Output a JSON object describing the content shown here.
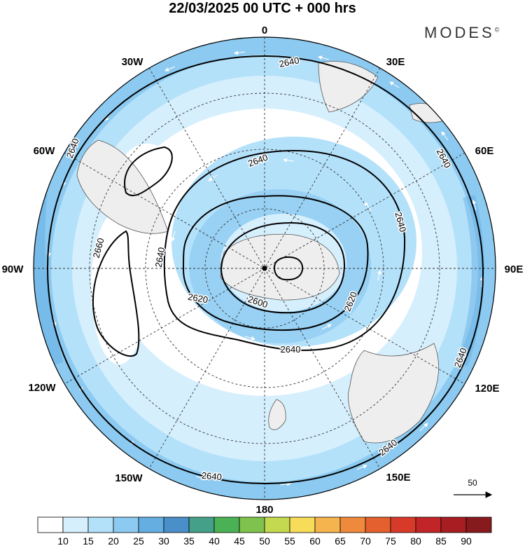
{
  "header": {
    "title": "22/03/2025  00 UTC  + 000 hrs",
    "brand": "MODES",
    "brand_mark": "©"
  },
  "map": {
    "projection": "south polar stereographic",
    "longitude_labels": {
      "top": "0",
      "top_right": "30E",
      "upper_right": "60E",
      "right": "90E",
      "lower_right": "120E",
      "bottom_right": "150E",
      "bottom": "180",
      "bottom_left": "150W",
      "lower_left": "120W",
      "left": "90W",
      "upper_left": "60W",
      "top_left": "30W"
    },
    "contour_labels": {
      "outer_top": "2640",
      "outer_upper_left": "2640",
      "outer_upper_right": "2640",
      "outer_right": "2640",
      "outer_lower_right": "2640",
      "outer_bottom": "2640",
      "mid_top": "2640",
      "mid_left": "2640",
      "mid_right": "2640",
      "mid_bottom": "2640",
      "west_high": "2660",
      "inner_left": "2620",
      "inner_right": "2620",
      "inner_center": "2600"
    },
    "reference_vector": "50"
  },
  "colorbar": {
    "ticks": [
      "10",
      "15",
      "20",
      "25",
      "30",
      "35",
      "40",
      "45",
      "50",
      "55",
      "60",
      "65",
      "70",
      "75",
      "80",
      "85",
      "90"
    ],
    "colors": [
      "#ffffff",
      "#d6effd",
      "#b4e1fa",
      "#8ccaf1",
      "#64aee2",
      "#4a8fc9",
      "#45a08a",
      "#4ab254",
      "#7fc34e",
      "#c4d94f",
      "#f7dc5a",
      "#f5b44e",
      "#ef8a3c",
      "#e4602e",
      "#d83a2a",
      "#c22528",
      "#a71d22",
      "#871a1c"
    ]
  }
}
